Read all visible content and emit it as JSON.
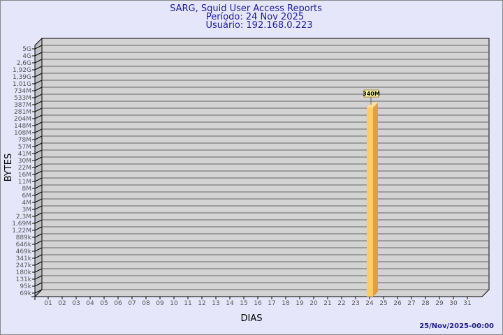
{
  "colors": {
    "background": "#e6e6fa",
    "plot": "#d3d3d3",
    "bar_front": "#ffcc66",
    "bar_side": "#e0a040",
    "title": "#1c1c9c"
  },
  "chart_data": {
    "type": "bar",
    "title": "SARG, Squid User Access Reports",
    "subtitle_lines": [
      "Período: 24 Nov 2025",
      "Usuário: 192.168.0.223"
    ],
    "xlabel": "DIAS",
    "ylabel": "BYTES",
    "y_scale": "log",
    "grid": true,
    "y_ticks": [
      "5G",
      "4G",
      "2,6G",
      "1,92G",
      "1,39G",
      "1,01G",
      "734M",
      "533M",
      "387M",
      "281M",
      "204M",
      "148M",
      "108M",
      "78M",
      "57M",
      "41M",
      "30M",
      "22M",
      "16M",
      "11M",
      "8M",
      "6M",
      "4M",
      "3M",
      "2,3M",
      "1,69M",
      "1,22M",
      "889k",
      "646k",
      "469k",
      "341k",
      "247k",
      "180k",
      "131k",
      "95k",
      "69k"
    ],
    "categories": [
      "01",
      "02",
      "03",
      "04",
      "05",
      "06",
      "07",
      "08",
      "09",
      "10",
      "11",
      "12",
      "13",
      "14",
      "15",
      "16",
      "17",
      "18",
      "19",
      "20",
      "21",
      "22",
      "23",
      "24",
      "25",
      "26",
      "27",
      "28",
      "29",
      "30",
      "31"
    ],
    "bars": [
      {
        "category": "24",
        "value": "340M",
        "label": "340M"
      }
    ]
  },
  "footer": {
    "timestamp": "25/Nov/2025-00:00"
  }
}
